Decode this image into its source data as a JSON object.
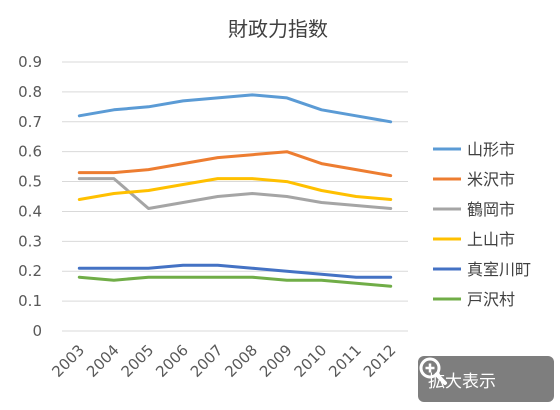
{
  "chart_data": {
    "type": "line",
    "title": "財政力指数",
    "xlabel": "",
    "ylabel": "",
    "categories": [
      "2003",
      "2004",
      "2005",
      "2006",
      "2007",
      "2008",
      "2009",
      "2010",
      "2011",
      "2012"
    ],
    "ylim": [
      0,
      0.9
    ],
    "yticks": [
      "0",
      "0.1",
      "0.2",
      "0.3",
      "0.4",
      "0.5",
      "0.6",
      "0.7",
      "0.8",
      "0.9"
    ],
    "grid": true,
    "legend_position": "right",
    "series": [
      {
        "name": "山形市",
        "color": "#5b9bd5",
        "values": [
          0.72,
          0.74,
          0.75,
          0.77,
          0.78,
          0.79,
          0.78,
          0.74,
          0.72,
          0.7
        ]
      },
      {
        "name": "米沢市",
        "color": "#ed7d31",
        "values": [
          0.53,
          0.53,
          0.54,
          0.56,
          0.58,
          0.59,
          0.6,
          0.56,
          0.54,
          0.52
        ]
      },
      {
        "name": "鶴岡市",
        "color": "#a5a5a5",
        "values": [
          0.51,
          0.51,
          0.41,
          0.43,
          0.45,
          0.46,
          0.45,
          0.43,
          0.42,
          0.41
        ]
      },
      {
        "name": "上山市",
        "color": "#ffc000",
        "values": [
          0.44,
          0.46,
          0.47,
          0.49,
          0.51,
          0.51,
          0.5,
          0.47,
          0.45,
          0.44
        ]
      },
      {
        "name": "真室川町",
        "color": "#4472c4",
        "values": [
          0.21,
          0.21,
          0.21,
          0.22,
          0.22,
          0.21,
          0.2,
          0.19,
          0.18,
          0.18
        ]
      },
      {
        "name": "戸沢村",
        "color": "#70ad47",
        "values": [
          0.18,
          0.17,
          0.18,
          0.18,
          0.18,
          0.18,
          0.17,
          0.17,
          0.16,
          0.15
        ]
      }
    ]
  },
  "zoom_button": {
    "label": "拡大表示",
    "icon": "magnifier-plus-icon"
  }
}
